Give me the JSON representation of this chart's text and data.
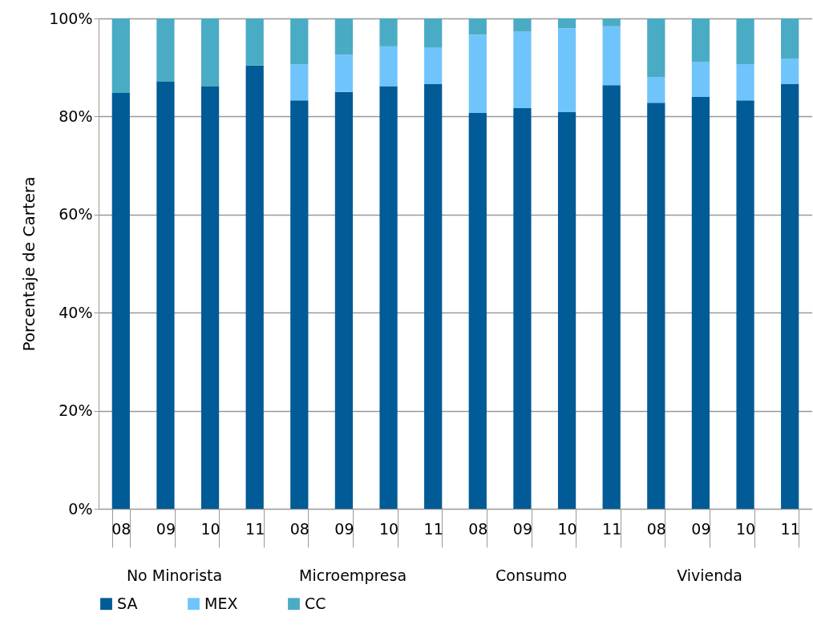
{
  "chart_data": {
    "type": "bar",
    "stacked": true,
    "ylabel": "Porcentaje de Cartera",
    "categories": [
      "08",
      "09",
      "10",
      "11",
      "08",
      "09",
      "10",
      "11",
      "08",
      "09",
      "10",
      "11",
      "08",
      "09",
      "10",
      "11"
    ],
    "annotations": [
      "No Minorista",
      "Microempresa",
      "Consumo",
      "Vivienda"
    ],
    "series": [
      {
        "name": "SA",
        "color": "#005b96",
        "values": [
          84.8,
          87.1,
          86.1,
          90.4,
          83.3,
          85.0,
          86.2,
          86.6,
          80.7,
          81.7,
          80.9,
          86.4,
          82.8,
          84.0,
          83.3,
          86.6
        ]
      },
      {
        "name": "MEX",
        "color": "#70c4fc",
        "values": [
          0,
          0,
          0,
          0,
          7.3,
          7.6,
          8.1,
          7.5,
          16.0,
          15.6,
          17.1,
          12.0,
          5.2,
          7.1,
          7.4,
          5.2
        ]
      },
      {
        "name": "CC",
        "color": "#4aabc5",
        "values": [
          15.2,
          12.9,
          13.9,
          9.6,
          9.4,
          7.4,
          5.7,
          5.9,
          3.3,
          2.7,
          2.0,
          1.6,
          12.0,
          8.9,
          9.3,
          8.2
        ]
      }
    ],
    "ylim": [
      0,
      100
    ],
    "yticks": [
      {
        "value": 0,
        "label": "0%"
      },
      {
        "value": 20,
        "label": "20%"
      },
      {
        "value": 40,
        "label": "40%"
      },
      {
        "value": 60,
        "label": "60%"
      },
      {
        "value": 80,
        "label": "80%"
      },
      {
        "value": 100,
        "label": "100%"
      }
    ],
    "grid": "y",
    "legend": "bottom"
  }
}
